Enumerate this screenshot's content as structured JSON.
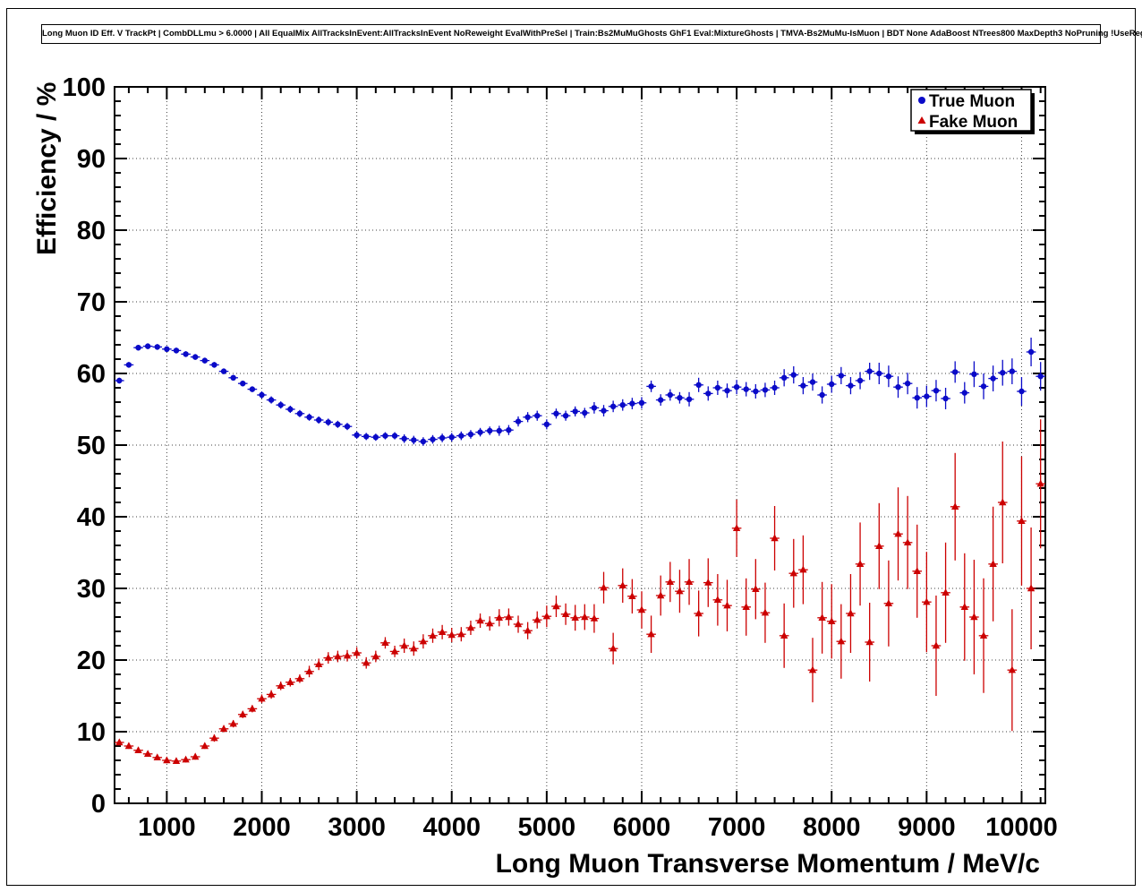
{
  "chart_data": {
    "type": "scatter",
    "title": "Long Muon ID Eff. V TrackPt | CombDLLmu > 6.0000 | All EqualMix AllTracksInEvent:AllTracksInEvent NoReweight EvalWithPreSel | Train:Bs2MuMuGhosts GhF1 Eval:MixtureGhosts | TMVA-Bs2MuMu-IsMuon | BDT None AdaBoost NTrees800 MaxDepth3 NoPruning !UseReg",
    "xlabel": "Long Muon Transverse Momentum / MeV/c",
    "ylabel": "Efficiency / %",
    "xlim": [
      450,
      10250
    ],
    "ylim": [
      0,
      100
    ],
    "grid": true,
    "x_major_ticks": [
      1000,
      2000,
      3000,
      4000,
      5000,
      6000,
      7000,
      8000,
      9000,
      10000
    ],
    "y_major_ticks": [
      0,
      10,
      20,
      30,
      40,
      50,
      60,
      70,
      80,
      90,
      100
    ],
    "x_minor_step": 200,
    "y_minor_step": 2,
    "x_bin_halfwidth": 50,
    "legend": {
      "position": "top-right",
      "entries": [
        {
          "label": "True Muon",
          "marker": "circle",
          "color": "#0a0ac8"
        },
        {
          "label": "Fake Muon",
          "marker": "triangle",
          "color": "#cc0000"
        }
      ]
    },
    "x": [
      500,
      600,
      700,
      800,
      900,
      1000,
      1100,
      1200,
      1300,
      1400,
      1500,
      1600,
      1700,
      1800,
      1900,
      2000,
      2100,
      2200,
      2300,
      2400,
      2500,
      2600,
      2700,
      2800,
      2900,
      3000,
      3100,
      3200,
      3300,
      3400,
      3500,
      3600,
      3700,
      3800,
      3900,
      4000,
      4100,
      4200,
      4300,
      4400,
      4500,
      4600,
      4700,
      4800,
      4900,
      5000,
      5100,
      5200,
      5300,
      5400,
      5500,
      5600,
      5700,
      5800,
      5900,
      6000,
      6100,
      6200,
      6300,
      6400,
      6500,
      6600,
      6700,
      6800,
      6900,
      7000,
      7100,
      7200,
      7300,
      7400,
      7500,
      7600,
      7700,
      7800,
      7900,
      8000,
      8100,
      8200,
      8300,
      8400,
      8500,
      8600,
      8700,
      8800,
      8900,
      9000,
      9100,
      9200,
      9300,
      9400,
      9500,
      9600,
      9700,
      9800,
      9900,
      10000,
      10100,
      10200
    ],
    "series": [
      {
        "name": "True Muon",
        "color": "#0a0ac8",
        "marker": "circle",
        "y": [
          59.0,
          61.2,
          63.6,
          63.8,
          63.7,
          63.4,
          63.2,
          62.7,
          62.3,
          61.8,
          61.2,
          60.3,
          59.4,
          58.6,
          57.8,
          57.0,
          56.3,
          55.6,
          55.0,
          54.4,
          53.9,
          53.5,
          53.2,
          52.9,
          52.6,
          51.4,
          51.2,
          51.1,
          51.3,
          51.3,
          50.9,
          50.7,
          50.5,
          50.8,
          51.0,
          51.1,
          51.3,
          51.5,
          51.8,
          52.0,
          52.0,
          52.1,
          53.3,
          53.9,
          54.1,
          52.9,
          54.4,
          54.1,
          54.7,
          54.5,
          55.2,
          54.8,
          55.4,
          55.6,
          55.8,
          55.9,
          58.2,
          56.3,
          57.0,
          56.6,
          56.4,
          58.4,
          57.2,
          58.0,
          57.6,
          58.1,
          57.8,
          57.5,
          57.7,
          58.0,
          59.4,
          59.8,
          58.3,
          58.8,
          57.0,
          58.5,
          59.7,
          58.3,
          59.0,
          60.3,
          60.0,
          59.6,
          58.1,
          58.6,
          56.6,
          56.8,
          57.6,
          56.5,
          60.2,
          57.3,
          59.9,
          58.2,
          59.3,
          60.1,
          60.3,
          57.5,
          63.0,
          59.6
        ],
        "ey": [
          0.4,
          0.4,
          0.4,
          0.4,
          0.4,
          0.4,
          0.4,
          0.4,
          0.4,
          0.4,
          0.4,
          0.4,
          0.4,
          0.4,
          0.4,
          0.5,
          0.5,
          0.5,
          0.5,
          0.5,
          0.5,
          0.5,
          0.5,
          0.5,
          0.5,
          0.5,
          0.5,
          0.5,
          0.5,
          0.5,
          0.6,
          0.6,
          0.6,
          0.6,
          0.6,
          0.6,
          0.6,
          0.6,
          0.6,
          0.6,
          0.7,
          0.7,
          0.7,
          0.7,
          0.7,
          0.7,
          0.7,
          0.7,
          0.7,
          0.7,
          0.8,
          0.8,
          0.8,
          0.8,
          0.8,
          0.8,
          0.8,
          0.8,
          0.8,
          0.8,
          1.0,
          1.0,
          1.0,
          1.0,
          1.0,
          1.0,
          1.0,
          1.0,
          1.0,
          1.0,
          1.2,
          1.2,
          1.2,
          1.2,
          1.2,
          1.2,
          1.2,
          1.2,
          1.2,
          1.2,
          1.5,
          1.5,
          1.5,
          1.5,
          1.5,
          1.5,
          1.5,
          1.5,
          1.5,
          1.5,
          1.8,
          1.8,
          1.8,
          1.8,
          1.8,
          2.0,
          2.0,
          2.0
        ]
      },
      {
        "name": "Fake Muon",
        "color": "#cc0000",
        "marker": "triangle",
        "y": [
          8.5,
          8.0,
          7.4,
          6.9,
          6.4,
          6.0,
          5.9,
          6.1,
          6.5,
          8.0,
          9.1,
          10.4,
          11.1,
          12.4,
          13.2,
          14.6,
          15.2,
          16.4,
          16.9,
          17.4,
          18.4,
          19.4,
          20.3,
          20.5,
          20.6,
          21.0,
          19.6,
          20.5,
          22.4,
          21.2,
          22.0,
          21.6,
          22.6,
          23.4,
          23.9,
          23.5,
          23.6,
          24.5,
          25.5,
          25.1,
          25.9,
          26.0,
          25.0,
          24.1,
          25.6,
          26.1,
          27.5,
          26.4,
          25.9,
          26.0,
          25.8,
          30.1,
          21.6,
          30.4,
          28.9,
          27.0,
          23.6,
          29.0,
          30.9,
          29.6,
          30.9,
          26.5,
          30.8,
          28.4,
          27.6,
          38.4,
          27.4,
          29.9,
          26.6,
          37.0,
          23.4,
          32.1,
          32.6,
          18.6,
          25.9,
          25.4,
          22.6,
          26.5,
          33.4,
          22.5,
          35.9,
          27.9,
          37.6,
          36.4,
          32.4,
          28.1,
          22.0,
          29.4,
          41.4,
          27.4,
          26.0,
          23.4,
          33.4,
          42.0,
          18.6,
          39.4,
          30.0,
          44.6
        ],
        "ey": [
          0.4,
          0.4,
          0.4,
          0.4,
          0.4,
          0.4,
          0.4,
          0.4,
          0.4,
          0.4,
          0.5,
          0.5,
          0.5,
          0.5,
          0.5,
          0.6,
          0.6,
          0.6,
          0.6,
          0.6,
          0.8,
          0.8,
          0.8,
          0.8,
          0.8,
          0.8,
          0.8,
          0.8,
          0.8,
          0.8,
          1.0,
          1.0,
          1.0,
          1.0,
          1.0,
          1.0,
          1.0,
          1.0,
          1.0,
          1.0,
          1.2,
          1.2,
          1.2,
          1.2,
          1.2,
          1.5,
          1.5,
          1.5,
          1.8,
          1.8,
          2.0,
          2.2,
          2.2,
          2.4,
          2.4,
          2.6,
          2.6,
          2.8,
          2.8,
          3.0,
          3.2,
          3.2,
          3.4,
          3.6,
          3.6,
          4.0,
          4.0,
          4.2,
          4.2,
          4.5,
          4.5,
          4.8,
          4.8,
          4.5,
          5.0,
          5.2,
          5.2,
          5.5,
          5.8,
          5.5,
          6.0,
          6.0,
          6.5,
          6.5,
          6.5,
          7.0,
          7.0,
          7.0,
          7.5,
          7.5,
          8.0,
          8.0,
          8.0,
          8.5,
          8.5,
          9.0,
          8.5,
          9.0
        ]
      }
    ]
  }
}
